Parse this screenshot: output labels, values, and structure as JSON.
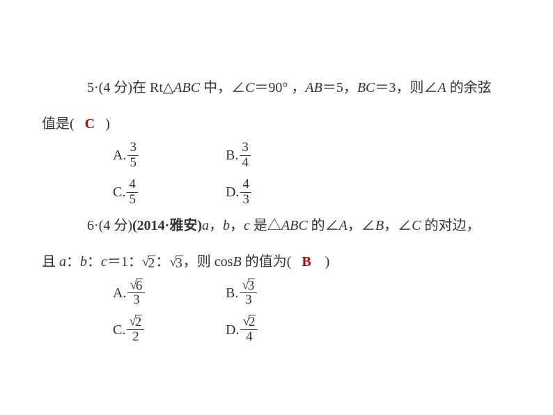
{
  "text_color": "#333333",
  "answer_color": "#bf0000",
  "background_color": "#ffffff",
  "font_size_body": 20,
  "q5": {
    "number": "5",
    "points": "(4 分)",
    "prefix": "在 Rt△",
    "tri": "ABC",
    "mid1": " 中，∠",
    "C": "C",
    "eq90": "＝90°",
    "comma1": " ，",
    "AB": "AB",
    "eq5": "＝5，",
    "BC": "BC",
    "eq3": "＝3，则∠",
    "A": "A",
    "tail": " 的余弦",
    "line2a": "值是(",
    "answer": "C",
    "line2b": ")",
    "options": {
      "A": {
        "label": "A.",
        "num": "3",
        "den": "5"
      },
      "B": {
        "label": "B.",
        "num": "3",
        "den": "4"
      },
      "C": {
        "label": "C.",
        "num": "4",
        "den": "5"
      },
      "D": {
        "label": "D.",
        "num": "4",
        "den": "3"
      }
    }
  },
  "q6": {
    "number": "6",
    "points": "(4 分)",
    "source": "(2014·雅安)",
    "a": "a",
    "b": "b",
    "c": "c",
    "mid1": " 是△",
    "ABC": "ABC",
    "mid2": " 的∠",
    "A": "A",
    "comma": "，∠",
    "B": "B",
    "C": "C",
    "tail1": " 的对边，",
    "line2a": "且 ",
    "colon": "：",
    "eq": "＝1：",
    "sr2": "2",
    "sr3": "3",
    "mid3": "，则 cos",
    "line2b": " 的值为(",
    "answer": "B",
    "line2c": ")",
    "options": {
      "A": {
        "label": "A.",
        "snum": "6",
        "den": "3"
      },
      "B": {
        "label": "B.",
        "snum": "3",
        "den": "3"
      },
      "C": {
        "label": "C.",
        "snum": "2",
        "den": "2"
      },
      "D": {
        "label": "D.",
        "snum": "2",
        "den": "4"
      }
    }
  }
}
